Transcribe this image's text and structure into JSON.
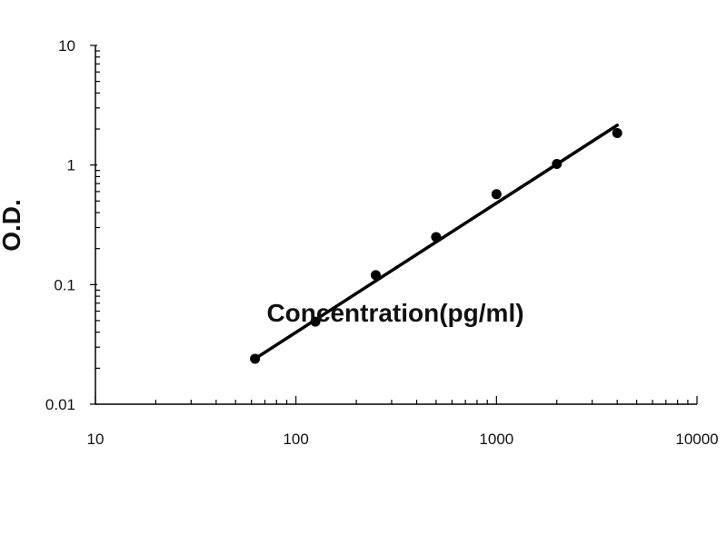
{
  "chart_data": {
    "type": "scatter",
    "title": "",
    "xlabel": "Concentration(pg/ml)",
    "ylabel": "O.D.",
    "xscale": "log",
    "yscale": "log",
    "xlim": [
      10,
      10000
    ],
    "ylim": [
      0.01,
      10
    ],
    "x_tick_labels": [
      "10",
      "100",
      "1000",
      "10000"
    ],
    "y_tick_labels": [
      "0.01",
      "0.1",
      "1",
      "10"
    ],
    "grid": false,
    "legend": "none",
    "series": [
      {
        "x": [
          62.5,
          125,
          250,
          500,
          1000,
          2000,
          4000
        ],
        "y": [
          0.024,
          0.049,
          0.12,
          0.25,
          0.57,
          1.02,
          1.85
        ]
      }
    ],
    "trendline": {
      "type": "power",
      "x": [
        62.5,
        4000
      ],
      "y": [
        0.024,
        2.15
      ]
    },
    "colors": {
      "points": "#000000",
      "line": "#000000",
      "axes": "#000000"
    }
  }
}
